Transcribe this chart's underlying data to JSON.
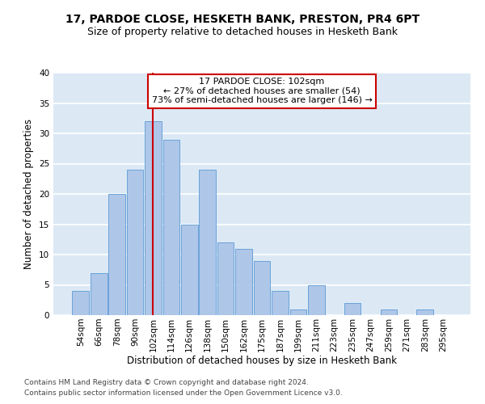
{
  "title1": "17, PARDOE CLOSE, HESKETH BANK, PRESTON, PR4 6PT",
  "title2": "Size of property relative to detached houses in Hesketh Bank",
  "xlabel": "Distribution of detached houses by size in Hesketh Bank",
  "ylabel": "Number of detached properties",
  "footnote1": "Contains HM Land Registry data © Crown copyright and database right 2024.",
  "footnote2": "Contains public sector information licensed under the Open Government Licence v3.0.",
  "categories": [
    "54sqm",
    "66sqm",
    "78sqm",
    "90sqm",
    "102sqm",
    "114sqm",
    "126sqm",
    "138sqm",
    "150sqm",
    "162sqm",
    "175sqm",
    "187sqm",
    "199sqm",
    "211sqm",
    "223sqm",
    "235sqm",
    "247sqm",
    "259sqm",
    "271sqm",
    "283sqm",
    "295sqm"
  ],
  "values": [
    4,
    7,
    20,
    24,
    32,
    29,
    15,
    24,
    12,
    11,
    9,
    4,
    1,
    5,
    0,
    2,
    0,
    1,
    0,
    1,
    0
  ],
  "bar_color": "#aec6e8",
  "bar_edge_color": "#5b9bd5",
  "highlight_line_color": "#cc0000",
  "annotation_line1": "17 PARDOE CLOSE: 102sqm",
  "annotation_line2": "← 27% of detached houses are smaller (54)",
  "annotation_line3": "73% of semi-detached houses are larger (146) →",
  "annotation_box_color": "#ffffff",
  "annotation_box_edge": "#cc0000",
  "ylim": [
    0,
    40
  ],
  "yticks": [
    0,
    5,
    10,
    15,
    20,
    25,
    30,
    35,
    40
  ],
  "bg_color": "#dce9f5",
  "grid_color": "#ffffff",
  "title1_fontsize": 10,
  "title2_fontsize": 9,
  "xlabel_fontsize": 8.5,
  "ylabel_fontsize": 8.5,
  "tick_fontsize": 7.5,
  "annotation_fontsize": 8.0,
  "footnote_fontsize": 6.5
}
